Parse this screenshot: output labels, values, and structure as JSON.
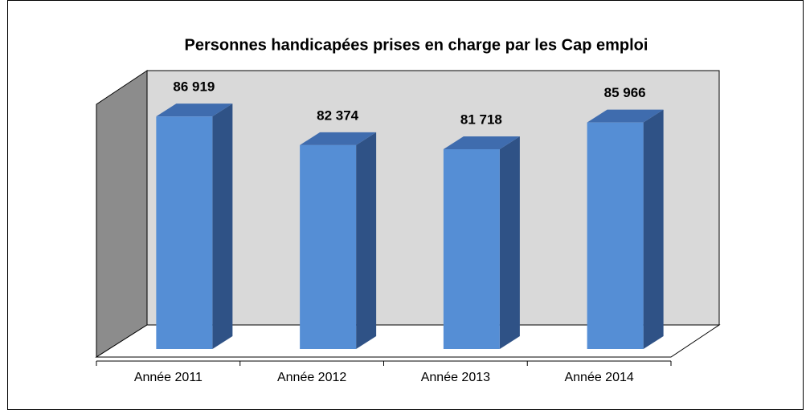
{
  "chart_data": {
    "type": "bar3d",
    "title": "Personnes handicapées prises en charge par les Cap emploi",
    "categories": [
      "Année 2011",
      "Année 2012",
      "Année 2013",
      "Année 2014"
    ],
    "values": [
      86919,
      82374,
      81718,
      85966
    ],
    "value_labels": [
      "86 919",
      "82 374",
      "81 718",
      "85 966"
    ],
    "color": "#558ed5",
    "ylim": [
      50000,
      90000
    ]
  }
}
